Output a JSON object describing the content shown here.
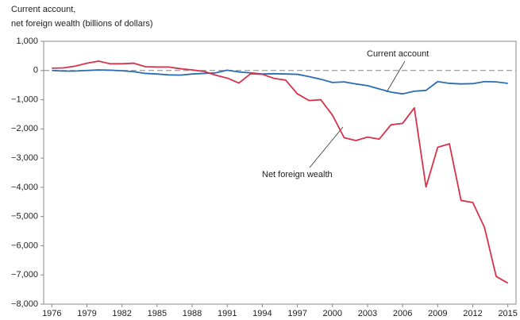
{
  "chart_data": {
    "type": "line",
    "title_lines": [
      "Current account,",
      "net foreign wealth (billions of dollars)"
    ],
    "x": [
      1976,
      1977,
      1978,
      1979,
      1980,
      1981,
      1982,
      1983,
      1984,
      1985,
      1986,
      1987,
      1988,
      1989,
      1990,
      1991,
      1992,
      1993,
      1994,
      1995,
      1996,
      1997,
      1998,
      1999,
      2000,
      2001,
      2002,
      2003,
      2004,
      2005,
      2006,
      2007,
      2008,
      2009,
      2010,
      2011,
      2012,
      2013,
      2014,
      2015
    ],
    "series": [
      {
        "name": "Current account",
        "color": "#2a6db0",
        "values": [
          0,
          -20,
          -20,
          0,
          20,
          10,
          -10,
          -40,
          -100,
          -120,
          -150,
          -160,
          -120,
          -100,
          -80,
          10,
          -50,
          -80,
          -120,
          -110,
          -120,
          -130,
          -210,
          -300,
          -410,
          -390,
          -460,
          -520,
          -630,
          -740,
          -800,
          -710,
          -680,
          -380,
          -440,
          -460,
          -450,
          -380,
          -390,
          -440
        ]
      },
      {
        "name": "Net foreign wealth",
        "color": "#d6334a",
        "values": [
          80,
          90,
          150,
          250,
          320,
          230,
          230,
          250,
          130,
          120,
          120,
          60,
          20,
          -30,
          -160,
          -260,
          -430,
          -110,
          -130,
          -270,
          -330,
          -800,
          -1030,
          -1000,
          -1530,
          -2300,
          -2400,
          -2280,
          -2350,
          -1860,
          -1810,
          -1280,
          -3990,
          -2630,
          -2510,
          -4450,
          -4520,
          -5370,
          -7050,
          -7280
        ]
      }
    ],
    "xlim": [
      1975.3,
      2015.7
    ],
    "xticks": [
      1976,
      1979,
      1982,
      1985,
      1988,
      1991,
      1994,
      1997,
      2000,
      2003,
      2006,
      2009,
      2012,
      2015
    ],
    "ylim": [
      -8000,
      1000
    ],
    "yticks": [
      {
        "value": 1000,
        "label": "1,000"
      },
      0,
      {
        "value": -1000,
        "label": "−1,000"
      },
      {
        "value": -2000,
        "label": "−2,000"
      },
      {
        "value": -3000,
        "label": "−3,000"
      },
      {
        "value": -4000,
        "label": "−4,000"
      },
      {
        "value": -5000,
        "label": "−5,000"
      },
      {
        "value": -6000,
        "label": "−6,000"
      },
      {
        "value": -7000,
        "label": "−7,000"
      },
      {
        "value": -8000,
        "label": "−8,000"
      }
    ],
    "hline": 0
  }
}
